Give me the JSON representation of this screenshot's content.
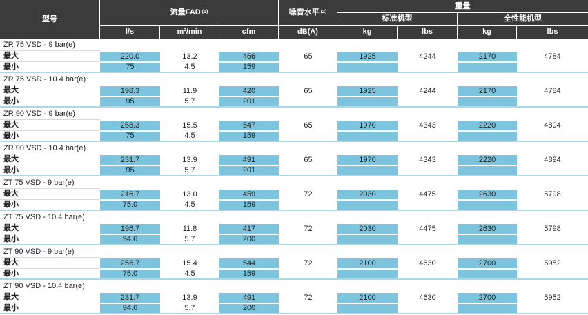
{
  "table": {
    "header": {
      "model": "型号",
      "flow_group": "流量FAD",
      "flow_sup": "(1)",
      "noise_group": "噪音水平",
      "noise_sup": "(2)",
      "weight_group": "重量",
      "standard_group": "标准机型",
      "full_perf_group": "全性能机型",
      "units": [
        "l/s",
        "m³/min",
        "cfm",
        "dB(A)",
        "kg",
        "lbs",
        "kg",
        "lbs"
      ]
    },
    "row_labels": {
      "max": "最大",
      "min": "最小"
    },
    "blue_columns": [
      0,
      2,
      4,
      6
    ],
    "groups": [
      {
        "model": "ZR 75 VSD - 9 bar(e)",
        "max": [
          "220.0",
          "13.2",
          "466",
          "65",
          "1925",
          "4244",
          "2170",
          "4784"
        ],
        "min": [
          "75",
          "4.5",
          "159",
          "",
          "",
          "",
          "",
          ""
        ]
      },
      {
        "model": "ZR 75 VSD - 10.4 bar(e)",
        "max": [
          "198.3",
          "11.9",
          "420",
          "65",
          "1925",
          "4244",
          "2170",
          "4784"
        ],
        "min": [
          "95",
          "5.7",
          "201",
          "",
          "",
          "",
          "",
          ""
        ]
      },
      {
        "model": "ZR 90 VSD - 9 bar(e)",
        "max": [
          "258.3",
          "15.5",
          "547",
          "65",
          "1970",
          "4343",
          "2220",
          "4894"
        ],
        "min": [
          "75",
          "4.5",
          "159",
          "",
          "",
          "",
          "",
          ""
        ]
      },
      {
        "model": "ZR 90 VSD - 10.4 bar(e)",
        "max": [
          "231.7",
          "13.9",
          "491",
          "65",
          "1970",
          "4343",
          "2220",
          "4894"
        ],
        "min": [
          "95",
          "5.7",
          "201",
          "",
          "",
          "",
          "",
          ""
        ]
      },
      {
        "model": "ZT 75 VSD - 9 bar(e)",
        "max": [
          "216.7",
          "13.0",
          "459",
          "72",
          "2030",
          "4475",
          "2630",
          "5798"
        ],
        "min": [
          "75.0",
          "4.5",
          "159",
          "",
          "",
          "",
          "",
          ""
        ]
      },
      {
        "model": "ZT 75 VSD - 10.4 bar(e)",
        "max": [
          "196.7",
          "11.8",
          "417",
          "72",
          "2030",
          "4475",
          "2630",
          "5798"
        ],
        "min": [
          "94.6",
          "5.7",
          "200",
          "",
          "",
          "",
          "",
          ""
        ]
      },
      {
        "model": "ZT 90 VSD - 9 bar(e)",
        "max": [
          "256.7",
          "15.4",
          "544",
          "72",
          "2100",
          "4630",
          "2700",
          "5952"
        ],
        "min": [
          "75.0",
          "4.5",
          "159",
          "",
          "",
          "",
          "",
          ""
        ]
      },
      {
        "model": "ZT 90 VSD - 10.4 bar(e)",
        "max": [
          "231.7",
          "13.9",
          "491",
          "72",
          "2100",
          "4630",
          "2700",
          "5952"
        ],
        "min": [
          "94.6",
          "5.7",
          "200",
          "",
          "",
          "",
          "",
          ""
        ]
      }
    ],
    "colors": {
      "header_bg": "#3b3b3b",
      "cell_blue": "#7dc5de",
      "divider_blue": "#a9d8ea",
      "thin_line": "#c2e3f1"
    }
  }
}
